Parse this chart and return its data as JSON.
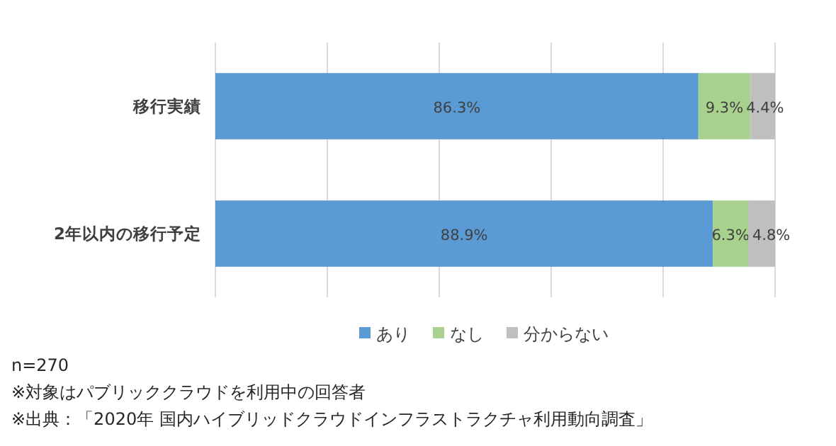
{
  "chart_data": {
    "type": "bar",
    "orientation": "horizontal",
    "stacked": true,
    "categories": [
      "移行実績",
      "2年以内の移行予定"
    ],
    "series": [
      {
        "name": "あり",
        "color": "#5b9bd5",
        "values": [
          86.3,
          88.9
        ],
        "value_labels": [
          "86.3%",
          "88.9%"
        ]
      },
      {
        "name": "なし",
        "color": "#a9d18e",
        "values": [
          9.3,
          6.3
        ],
        "value_labels": [
          "9.3%",
          "6.3%"
        ]
      },
      {
        "name": "分からない",
        "color": "#bfbfbf",
        "values": [
          4.4,
          4.8
        ],
        "value_labels": [
          "4.4%",
          "4.8%"
        ]
      }
    ],
    "xlim": [
      0,
      100
    ],
    "xticks": [
      {
        "value": 0,
        "label": null
      },
      {
        "value": 20,
        "label": null
      },
      {
        "value": 40,
        "label": null
      },
      {
        "value": 60,
        "label": null
      },
      {
        "value": 80,
        "label": null
      },
      {
        "value": 100,
        "label": null
      }
    ],
    "tick_labels": "y",
    "grid": "x",
    "legend": "bottom",
    "annotations": [
      "n=270",
      "※対象はパブリッククラウドを利用中の回答者",
      "※出典：「2020年 国内ハイブリッドクラウドインフラストラクチャ利用動向調査」"
    ]
  }
}
